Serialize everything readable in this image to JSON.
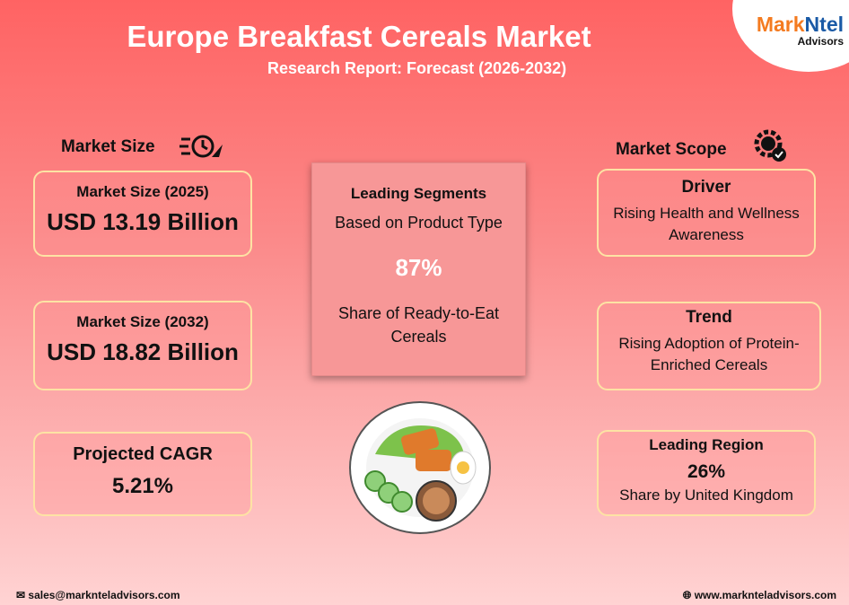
{
  "header": {
    "title": "Europe Breakfast Cereals Market",
    "subtitle": "Research Report: Forecast (2026-2032)"
  },
  "logo": {
    "brand_a": "Mark",
    "brand_b": "Ntel",
    "sub": "Advisors"
  },
  "market_size": {
    "heading": "Market Size",
    "cards": [
      {
        "label": "Market Size (2025)",
        "value": "USD 13.19 Billion"
      },
      {
        "label": "Market Size (2032)",
        "value": "USD 18.82 Billion"
      },
      {
        "label": "Projected CAGR",
        "value": "5.21%"
      }
    ]
  },
  "segments": {
    "heading": "Leading Segments",
    "basis": "Based on Product Type",
    "value": "87%",
    "desc": "Share of Ready-to-Eat Cereals"
  },
  "scope": {
    "heading": "Market Scope",
    "driver": {
      "label": "Driver",
      "text": "Rising Health and Wellness Awareness"
    },
    "trend": {
      "label": "Trend",
      "text": "Rising Adoption of Protein-Enriched Cereals"
    },
    "region": {
      "label": "Leading Region",
      "value": "26%",
      "text": "Share by United Kingdom"
    }
  },
  "footer": {
    "email": "sales@marknteladvisors.com",
    "website": "www.marknteladvisors.com"
  },
  "colors": {
    "orange": "#f47b20",
    "blue": "#1a5aa6",
    "border": "#fde3a4"
  }
}
